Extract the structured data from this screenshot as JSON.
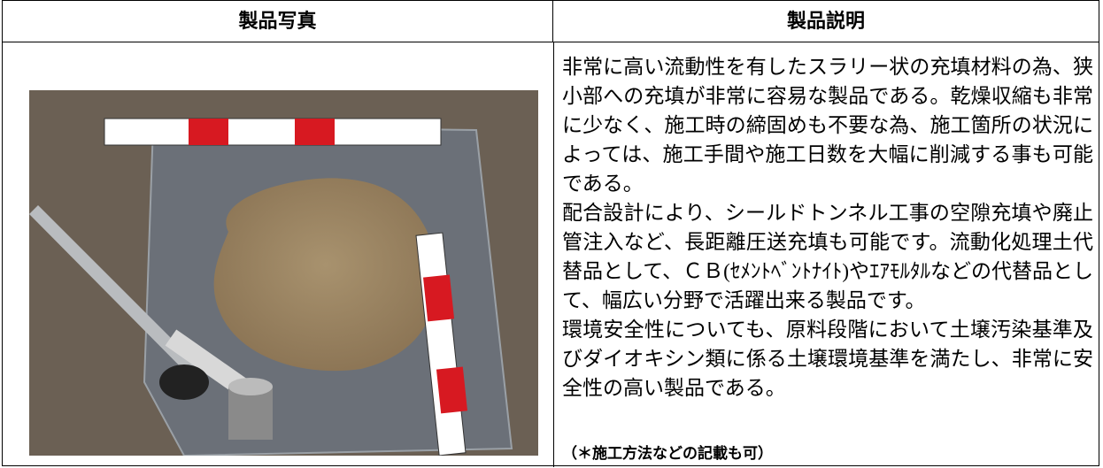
{
  "table": {
    "headers": [
      "製品写真",
      "製品説明"
    ],
    "rows": [
      {
        "description": [
          "非常に高い流動性を有したスラリー状の充填材料の為、狭小部への充填が非常に容易な製品である。乾燥収縮も非常に少なく、施工時の締固めも不要な為、施工箇所の状況によっては、施工手間や施工日数を大幅に削減する事も可能である。",
          "配合設計により、シールドトンネル工事の空隙充填や廃止管注入など、長距離圧送充填も可能です。流動化処理土代替品として、ＣＢ(ｾﾒﾝﾄﾍﾞﾝﾄﾅｲﾄ)やｴｱﾓﾙﾀﾙなどの代替品として、幅広い分野で活躍出来る製品です。",
          "環境安全性についても、原料段階において土壌汚染基準及びダイオキシン類に係る土壌環境基準を満たし、非常に安全性の高い製品である。"
        ],
        "note": "（＊施工方法などの記載も可）"
      }
    ]
  }
}
